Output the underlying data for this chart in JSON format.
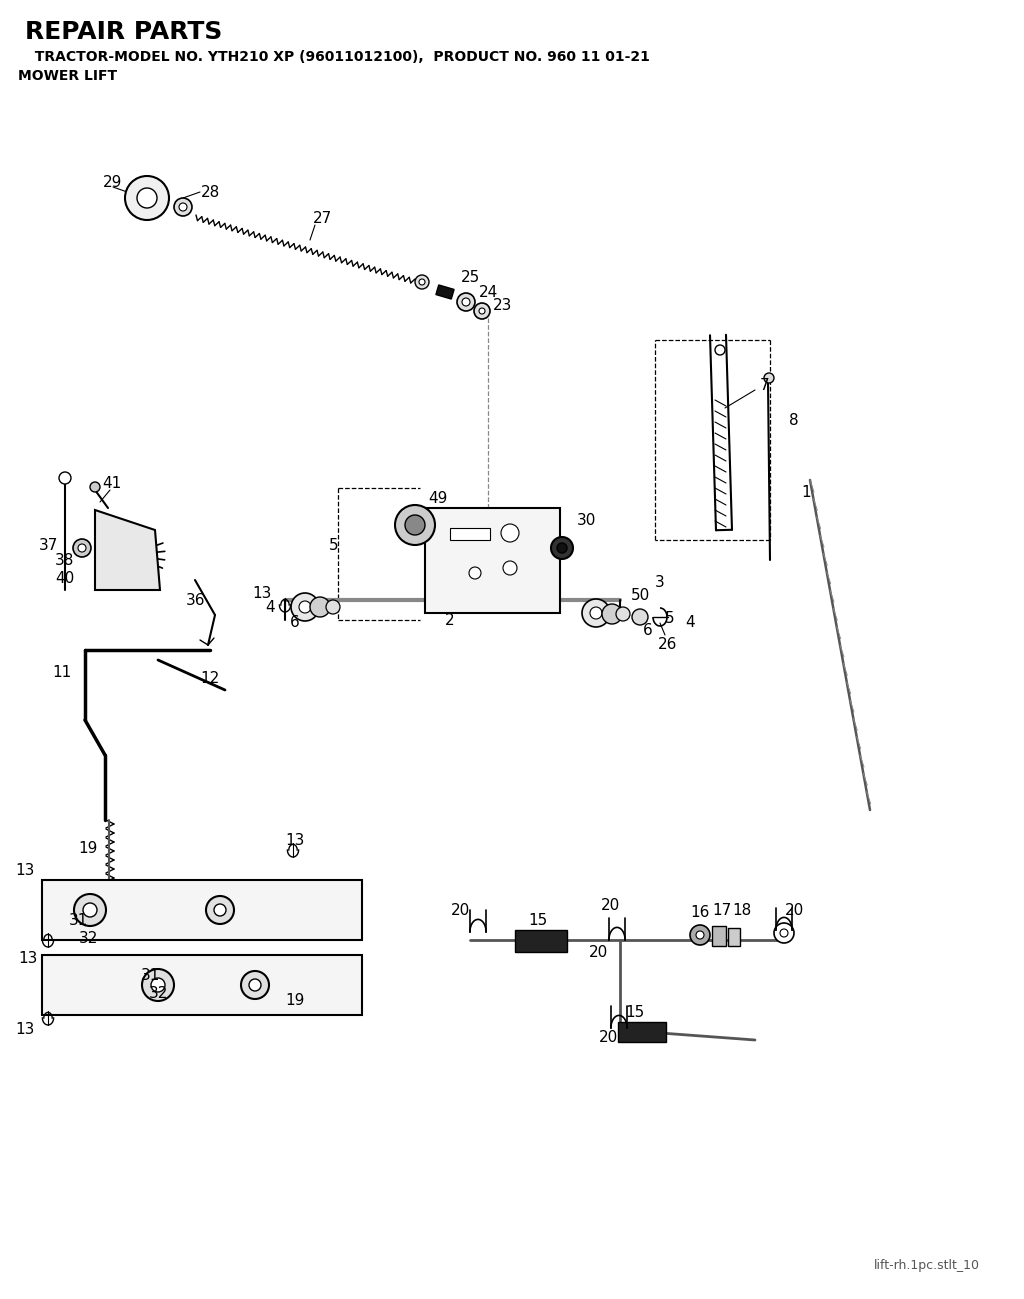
{
  "title": "REPAIR PARTS",
  "subtitle": "  TRACTOR-MODEL NO. YTH210 XP (96011012100),  PRODUCT NO. 960 11 01-21",
  "section": "MOWER LIFT",
  "filename": "lift-rh.1pc.stlt_10",
  "bg_color": "#ffffff",
  "text_color": "#000000",
  "title_fontsize": 18,
  "subtitle_fontsize": 10,
  "section_fontsize": 10,
  "label_fontsize": 10
}
